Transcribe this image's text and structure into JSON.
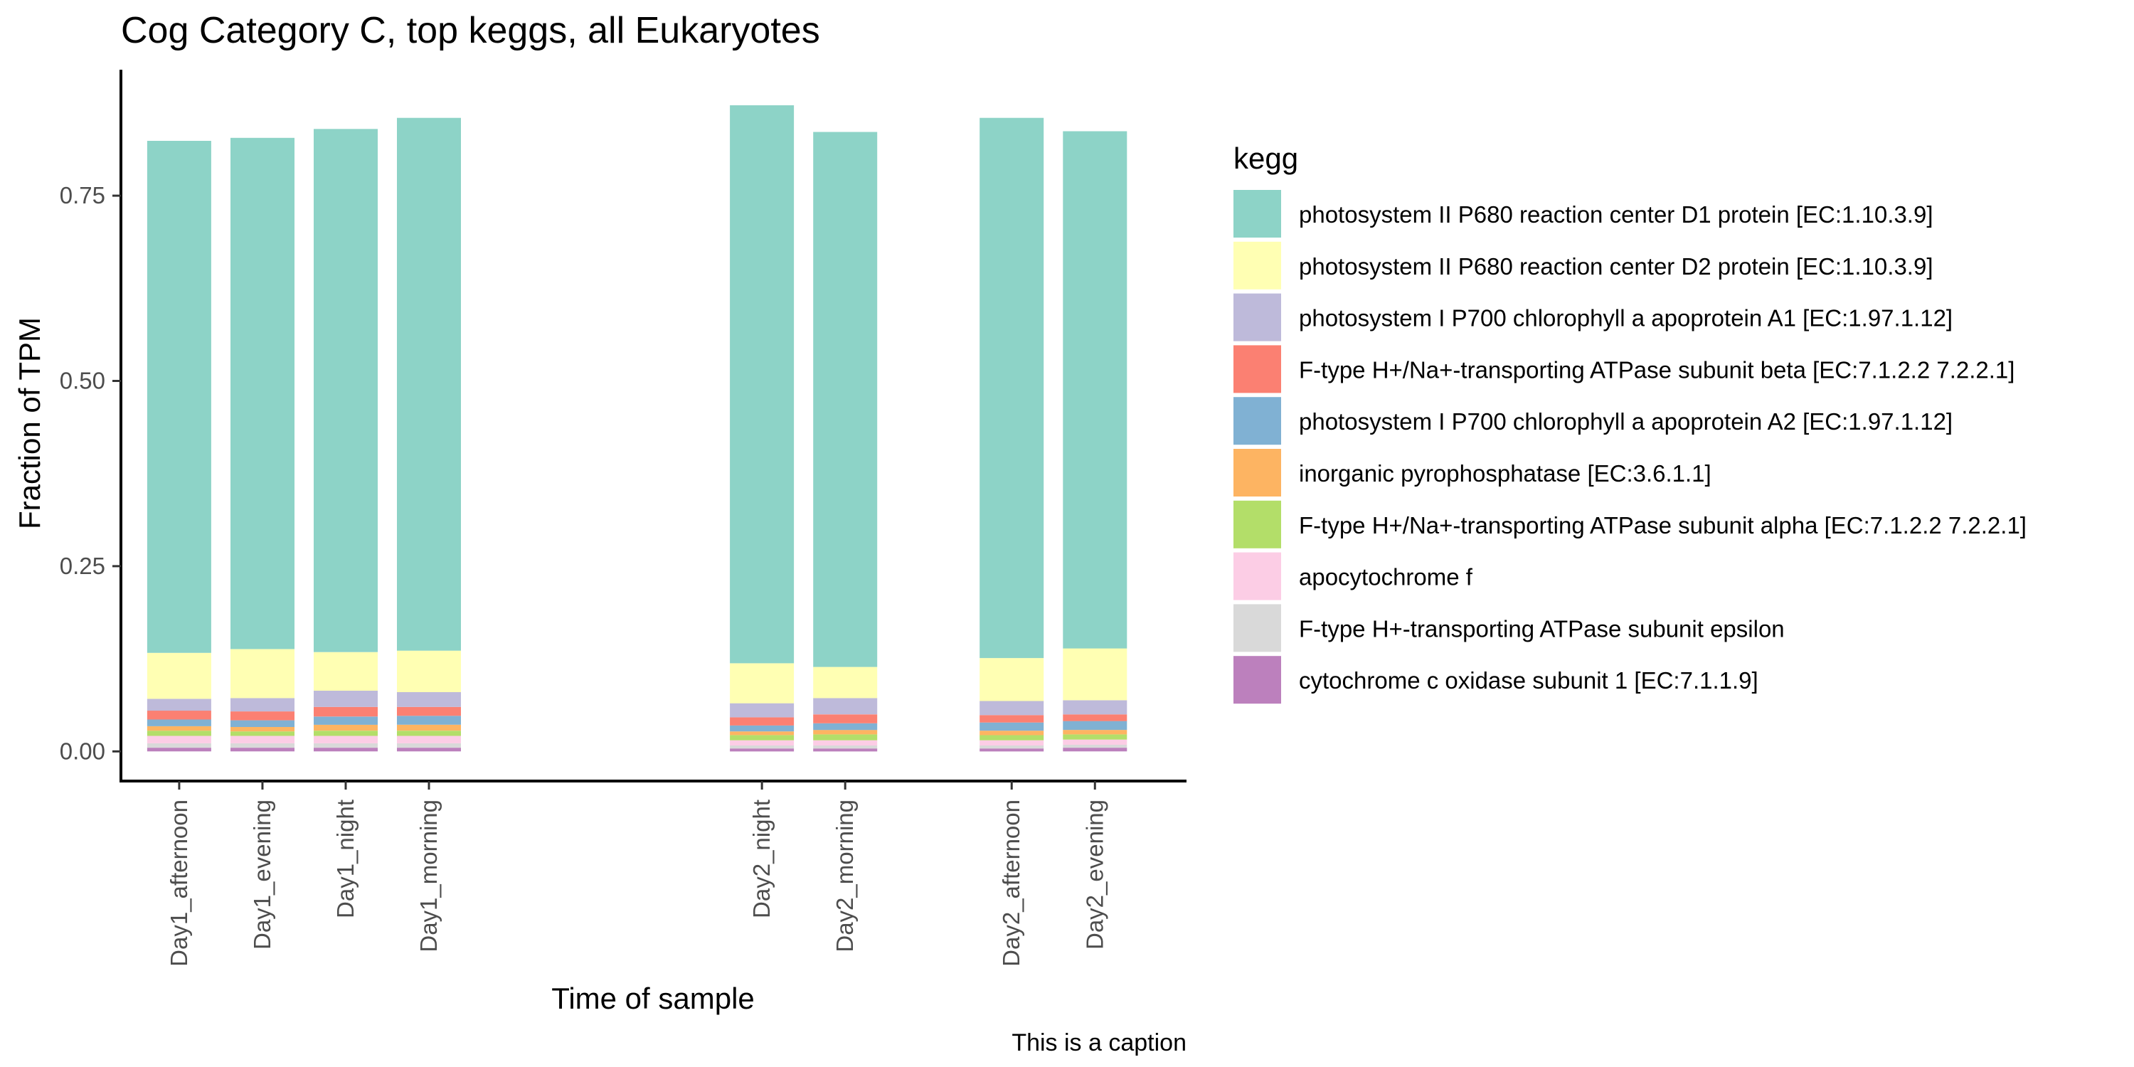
{
  "chart_data": {
    "type": "bar",
    "stacked": true,
    "title": "Cog Category C, top keggs, all Eukaryotes",
    "xlabel": "Time of sample",
    "ylabel": "Fraction of TPM",
    "caption": "This is a caption",
    "ylim": [
      -0.04,
      0.92
    ],
    "yticks": [
      "0.00",
      "0.25",
      "0.50",
      "0.75"
    ],
    "ytick_values": [
      0,
      0.25,
      0.5,
      0.75
    ],
    "legend_title": "kegg",
    "legend_position": "right",
    "grid": false,
    "categories": [
      "Day1_afternoon",
      "Day1_evening",
      "Day1_night",
      "Day1_morning",
      "Day2_night",
      "Day2_morning",
      "Day2_afternoon",
      "Day2_evening"
    ],
    "x_positions": [
      1,
      2,
      3,
      4,
      8,
      9,
      11,
      12
    ],
    "xlim": [
      0.3,
      13.1
    ],
    "series": [
      {
        "name": "cytochrome c oxidase subunit 1 [EC:7.1.1.9]",
        "color": "#BC80BD",
        "values": [
          0.005,
          0.005,
          0.005,
          0.005,
          0.004,
          0.004,
          0.004,
          0.005
        ]
      },
      {
        "name": "F-type H+-transporting ATPase subunit epsilon",
        "color": "#D9D9D9",
        "values": [
          0.006,
          0.006,
          0.006,
          0.006,
          0.004,
          0.004,
          0.004,
          0.004
        ]
      },
      {
        "name": "apocytochrome f",
        "color": "#FCCDE5",
        "values": [
          0.01,
          0.01,
          0.01,
          0.01,
          0.007,
          0.007,
          0.007,
          0.007
        ]
      },
      {
        "name": "F-type H+/Na+-transporting ATPase subunit alpha [EC:7.1.2.2 7.2.2.1]",
        "color": "#B3DE69",
        "values": [
          0.007,
          0.006,
          0.007,
          0.007,
          0.007,
          0.008,
          0.007,
          0.007
        ]
      },
      {
        "name": "inorganic pyrophosphatase [EC:3.6.1.1]",
        "color": "#FDB462",
        "values": [
          0.006,
          0.006,
          0.008,
          0.008,
          0.005,
          0.006,
          0.006,
          0.006
        ]
      },
      {
        "name": "photosystem I P700 chlorophyll a apoprotein A2 [EC:1.97.1.12]",
        "color": "#80B1D3",
        "values": [
          0.009,
          0.009,
          0.011,
          0.012,
          0.008,
          0.009,
          0.011,
          0.012
        ]
      },
      {
        "name": "F-type H+/Na+-transporting ATPase subunit beta [EC:7.1.2.2 7.2.2.1]",
        "color": "#FB8072",
        "values": [
          0.012,
          0.012,
          0.013,
          0.012,
          0.011,
          0.012,
          0.01,
          0.009
        ]
      },
      {
        "name": "photosystem I P700 chlorophyll a apoprotein A1 [EC:1.97.1.12]",
        "color": "#BEBADA",
        "values": [
          0.016,
          0.018,
          0.022,
          0.02,
          0.019,
          0.022,
          0.019,
          0.019
        ]
      },
      {
        "name": "photosystem II P680 reaction center D2 protein [EC:1.10.3.9]",
        "color": "#FFFFB3",
        "values": [
          0.062,
          0.066,
          0.052,
          0.056,
          0.054,
          0.042,
          0.058,
          0.07
        ]
      },
      {
        "name": "photosystem II P680 reaction center D1 protein [EC:1.10.3.9]",
        "color": "#8DD3C7",
        "values": [
          0.691,
          0.69,
          0.706,
          0.719,
          0.753,
          0.722,
          0.729,
          0.698
        ]
      }
    ],
    "legend_order": [
      9,
      8,
      7,
      6,
      5,
      4,
      3,
      2,
      1,
      0
    ]
  }
}
